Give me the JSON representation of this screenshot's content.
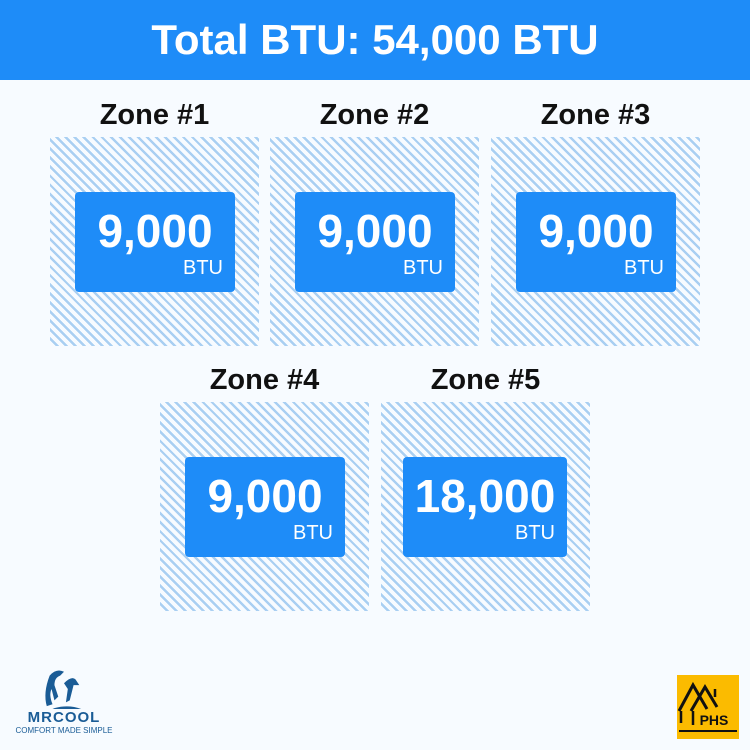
{
  "header": {
    "title": "Total BTU: 54,000 BTU"
  },
  "zones": [
    {
      "title": "Zone #1",
      "value": "9,000",
      "unit": "BTU"
    },
    {
      "title": "Zone #2",
      "value": "9,000",
      "unit": "BTU"
    },
    {
      "title": "Zone #3",
      "value": "9,000",
      "unit": "BTU"
    },
    {
      "title": "Zone #4",
      "value": "9,000",
      "unit": "BTU"
    },
    {
      "title": "Zone #5",
      "value": "18,000",
      "unit": "BTU"
    }
  ],
  "logos": {
    "left": "MRCOOL",
    "left_tagline": "COMFORT MADE SIMPLE",
    "right": "PHS"
  },
  "colors": {
    "accent": "#1e8cf8",
    "hatch": "#a9cff2",
    "phs": "#fbbb00"
  }
}
